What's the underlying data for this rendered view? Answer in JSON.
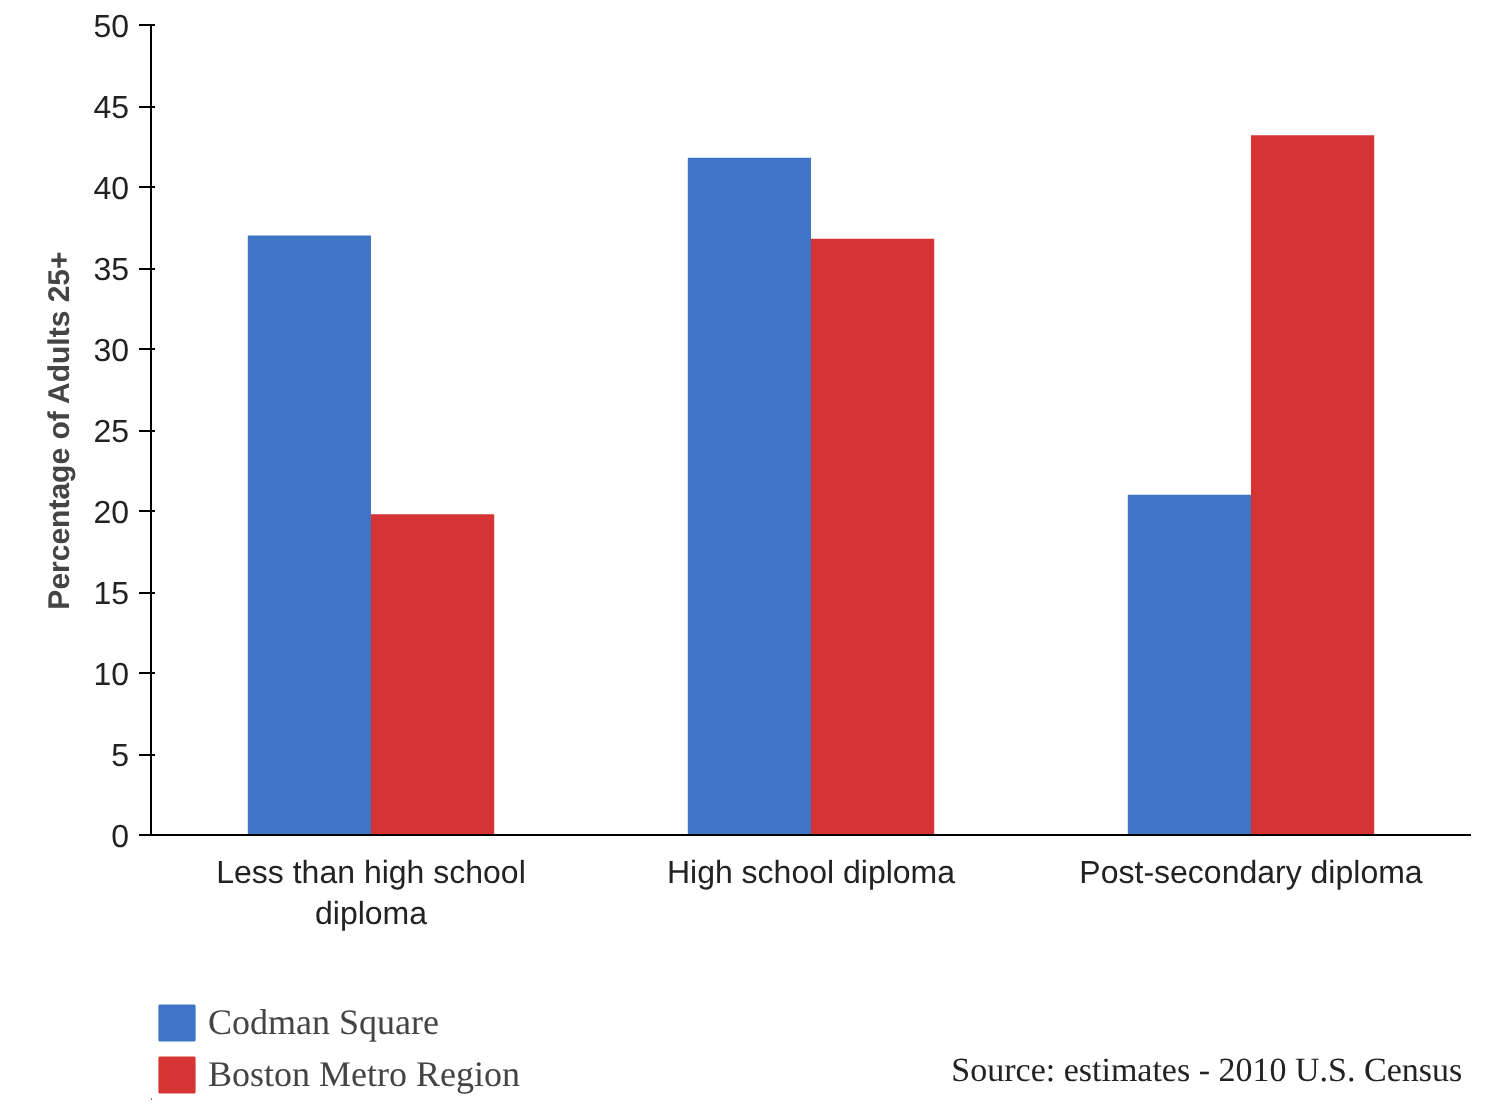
{
  "chart_data": {
    "type": "bar",
    "ylabel": "Percentage of Adults 25+",
    "categories": [
      "Less than high school diploma",
      "High school diploma",
      "Post-secondary diploma"
    ],
    "series": [
      {
        "name": "Codman Square",
        "color": "#3f74c6",
        "values": [
          37,
          41.8,
          21
        ]
      },
      {
        "name": "Boston Metro Region",
        "color": "#d63434",
        "values": [
          19.8,
          36.8,
          43.2
        ]
      }
    ],
    "ylim": [
      0,
      50
    ],
    "yticks": [
      0,
      5,
      10,
      15,
      20,
      25,
      30,
      35,
      40,
      45,
      50
    ],
    "grid": false,
    "legend": "bottom left",
    "annotations": [
      "Source: estimates - 2010 U.S. Census"
    ]
  }
}
